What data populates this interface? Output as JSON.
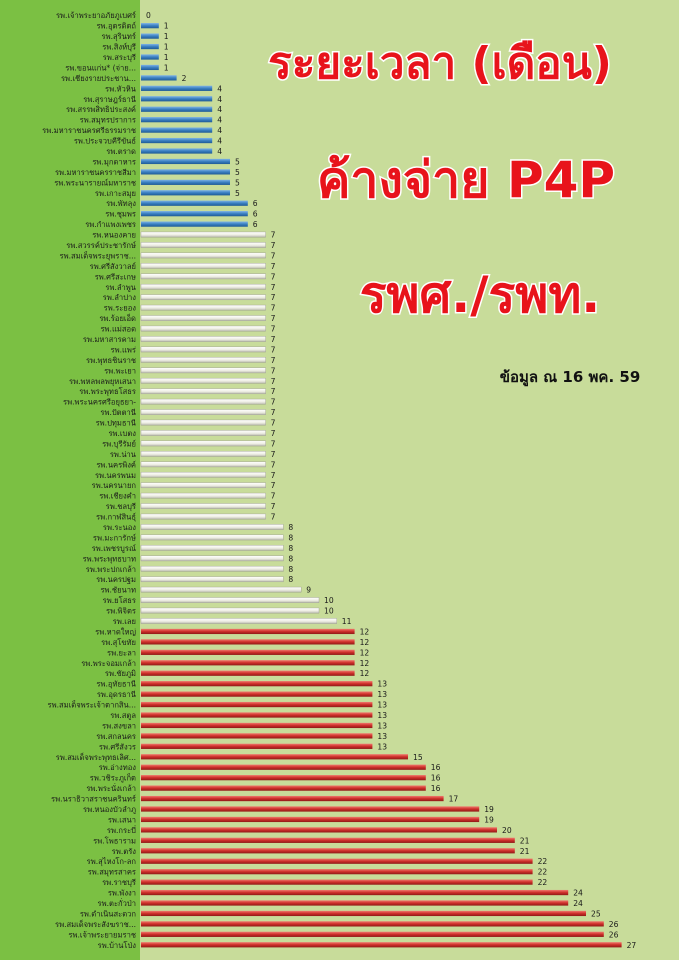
{
  "title_lines": [
    "ระยะเวลา (เดือน)",
    "ค้างจ่าย P4P",
    "รพศ./รพท."
  ],
  "note": "ข้อมูล ณ 16 พค. 59",
  "colors": {
    "background": "#c8dc9a",
    "label_panel": "#7bc043",
    "title_text": "#e8131b",
    "title_outline": "#ffffff",
    "series_blue": "#3a7fc1",
    "series_white": "#f4f4ee",
    "series_red": "#cf2f2a"
  },
  "chart_data": {
    "type": "bar",
    "orientation": "horizontal",
    "grid": false,
    "legend": "none",
    "xlim": [
      0,
      27
    ],
    "categories": [
      "รพ.เจ้าพระยาอภัยภูเบศร์",
      "รพ.อุตรดิตถ์",
      "รพ.สุรินทร์",
      "รพ.สิงห์บุรี",
      "รพ.สระบุรี",
      "รพ.ขอนแก่น* (จ่าย...",
      "รพ.เชียงรายประชาน...",
      "รพ.หัวหิน",
      "รพ.สุราษฎร์ธานี",
      "รพ.สรรพสิทธิประสงค์",
      "รพ.สมุทรปราการ",
      "รพ.มหาราชนครศรีธรรมราช",
      "รพ.ประจวบคีรีขันธ์",
      "รพ.ตราด",
      "รพ.มุกดาหาร",
      "รพ.มหาราชนครราชสีมา",
      "รพ.พระนารายณ์มหาราช",
      "รพ.เกาะสมุย",
      "รพ.พัทลุง",
      "รพ.ชุมพร",
      "รพ.กำแพงเพชร",
      "รพ.หนองคาย",
      "รพ.สวรรค์ประชารักษ์",
      "รพ.สมเด็จพระยุพราช...",
      "รพ.ศรีสังวาลย์",
      "รพ.ศรีสะเกษ",
      "รพ.ลำพูน",
      "รพ.ลำปาง",
      "รพ.ระยอง",
      "รพ.ร้อยเอ็ด",
      "รพ.แม่สอด",
      "รพ.มหาสารคาม",
      "รพ.แพร่",
      "รพ.พุทธชินราช",
      "รพ.พะเยา",
      "รพ.พหลพลพยุหเสนา",
      "รพ.พระพุทธโสธร",
      "รพ.พระนครศรีอยุธยา-",
      "รพ.ปัตตานี",
      "รพ.ปทุมธานี",
      "รพ.เบตง",
      "รพ.บุรีรัมย์",
      "รพ.น่าน",
      "รพ.นครพิงค์",
      "รพ.นครพนม",
      "รพ.นครนายก",
      "รพ.เชียงคำ",
      "รพ.ชลบุรี",
      "รพ.กาฬสินธุ์",
      "รพ.ระนอง",
      "รพ.มะการักษ์",
      "รพ.เพชรบูรณ์",
      "รพ.พระพุทธบาท",
      "รพ.พระปกเกล้า",
      "รพ.นครปฐม",
      "รพ.ชัยนาท",
      "รพ.ยโสธร",
      "รพ.พิจิตร",
      "รพ.เลย",
      "รพ.หาดใหญ่",
      "รพ.สุโขทัย",
      "รพ.ยะลา",
      "รพ.พระจอมเกล้า",
      "รพ.ชัยภูมิ",
      "รพ.อุทัยธานี",
      "รพ.อุดรธานี",
      "รพ.สมเด็จพระเจ้าตากสิน...",
      "รพ.สตูล",
      "รพ.สงขลา",
      "รพ.สกลนคร",
      "รพ.ศรีสังวร",
      "รพ.สมเด็จพระพุทธเลิศ...",
      "รพ.อ่างทอง",
      "รพ.วชิระภูเก็ต",
      "รพ.พระนั่งเกล้า",
      "รพ.นราธิวาสราชนครินทร์",
      "รพ.หนองบัวลำภู",
      "รพ.เสนา",
      "รพ.กระบี่",
      "รพ.โพธาราม",
      "รพ.ตรัง",
      "รพ.สุไหงโก-ลก",
      "รพ.สมุทรสาคร",
      "รพ.ราชบุรี",
      "รพ.พังงา",
      "รพ.ตะกั่วป่า",
      "รพ.ดำเนินสะดวก",
      "รพ.สมเด็จพระสังฆราช...",
      "รพ.เจ้าพระยายมราช",
      "รพ.บ้านโป่ง"
    ],
    "values": [
      0,
      1,
      1,
      1,
      1,
      1,
      2,
      4,
      4,
      4,
      4,
      4,
      4,
      4,
      5,
      5,
      5,
      5,
      6,
      6,
      6,
      7,
      7,
      7,
      7,
      7,
      7,
      7,
      7,
      7,
      7,
      7,
      7,
      7,
      7,
      7,
      7,
      7,
      7,
      7,
      7,
      7,
      7,
      7,
      7,
      7,
      7,
      7,
      7,
      8,
      8,
      8,
      8,
      8,
      8,
      9,
      10,
      10,
      11,
      12,
      12,
      12,
      12,
      12,
      13,
      13,
      13,
      13,
      13,
      13,
      13,
      15,
      16,
      16,
      16,
      17,
      19,
      19,
      20,
      21,
      21,
      22,
      22,
      22,
      24,
      24,
      25,
      26,
      26,
      27
    ]
  }
}
